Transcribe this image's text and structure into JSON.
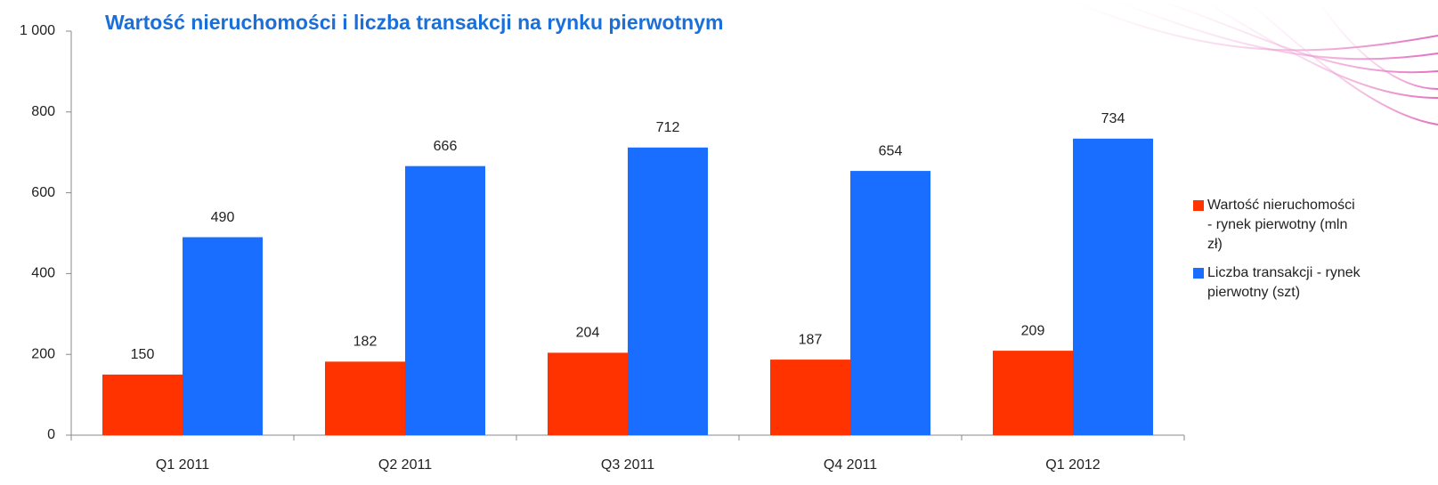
{
  "chart_data": {
    "type": "bar",
    "title": "Wartość nieruchomości i liczba transakcji na rynku pierwotnym",
    "categories": [
      "Q1 2011",
      "Q2 2011",
      "Q3 2011",
      "Q4 2011",
      "Q1 2012"
    ],
    "series": [
      {
        "name": "Wartość nieruchomości - rynek pierwotny (mln zł)",
        "color": "#ff3300",
        "values": [
          150,
          182,
          204,
          187,
          209
        ]
      },
      {
        "name": "Liczba transakcji - rynek pierwotny (szt)",
        "color": "#1a6eff",
        "values": [
          490,
          666,
          712,
          654,
          734
        ]
      }
    ],
    "ylim": [
      0,
      1000
    ],
    "yticks": [
      0,
      200,
      400,
      600,
      800,
      {
        "value": 1000,
        "label": "1 000"
      }
    ],
    "legend": "right"
  }
}
